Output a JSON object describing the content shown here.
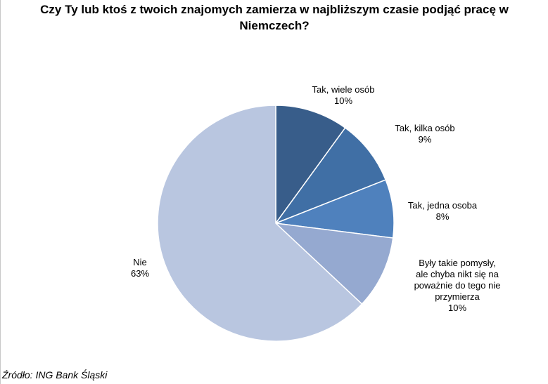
{
  "chart_data": {
    "type": "pie",
    "title": "Czy Ty lub ktoś z twoich znajomych zamierza w najbliższym czasie podjąć pracę w Niemczech?",
    "slices": [
      {
        "label_lines": [
          "Tak, wiele osób"
        ],
        "value": 10,
        "value_label": "10%",
        "color": "#385d8a"
      },
      {
        "label_lines": [
          "Tak, kilka osób"
        ],
        "value": 9,
        "value_label": "9%",
        "color": "#406fa5"
      },
      {
        "label_lines": [
          "Tak, jedna osoba"
        ],
        "value": 8,
        "value_label": "8%",
        "color": "#4f81bd"
      },
      {
        "label_lines": [
          "Były takie pomysły,",
          "ale chyba nikt się na",
          "poważnie do tego nie",
          "przymierza"
        ],
        "value": 10,
        "value_label": "10%",
        "color": "#95a9d0"
      },
      {
        "label_lines": [
          "Nie"
        ],
        "value": 63,
        "value_label": "63%",
        "color": "#b9c6e0"
      }
    ]
  },
  "footer": {
    "source": "Źródło: ING Bank Śląski"
  }
}
